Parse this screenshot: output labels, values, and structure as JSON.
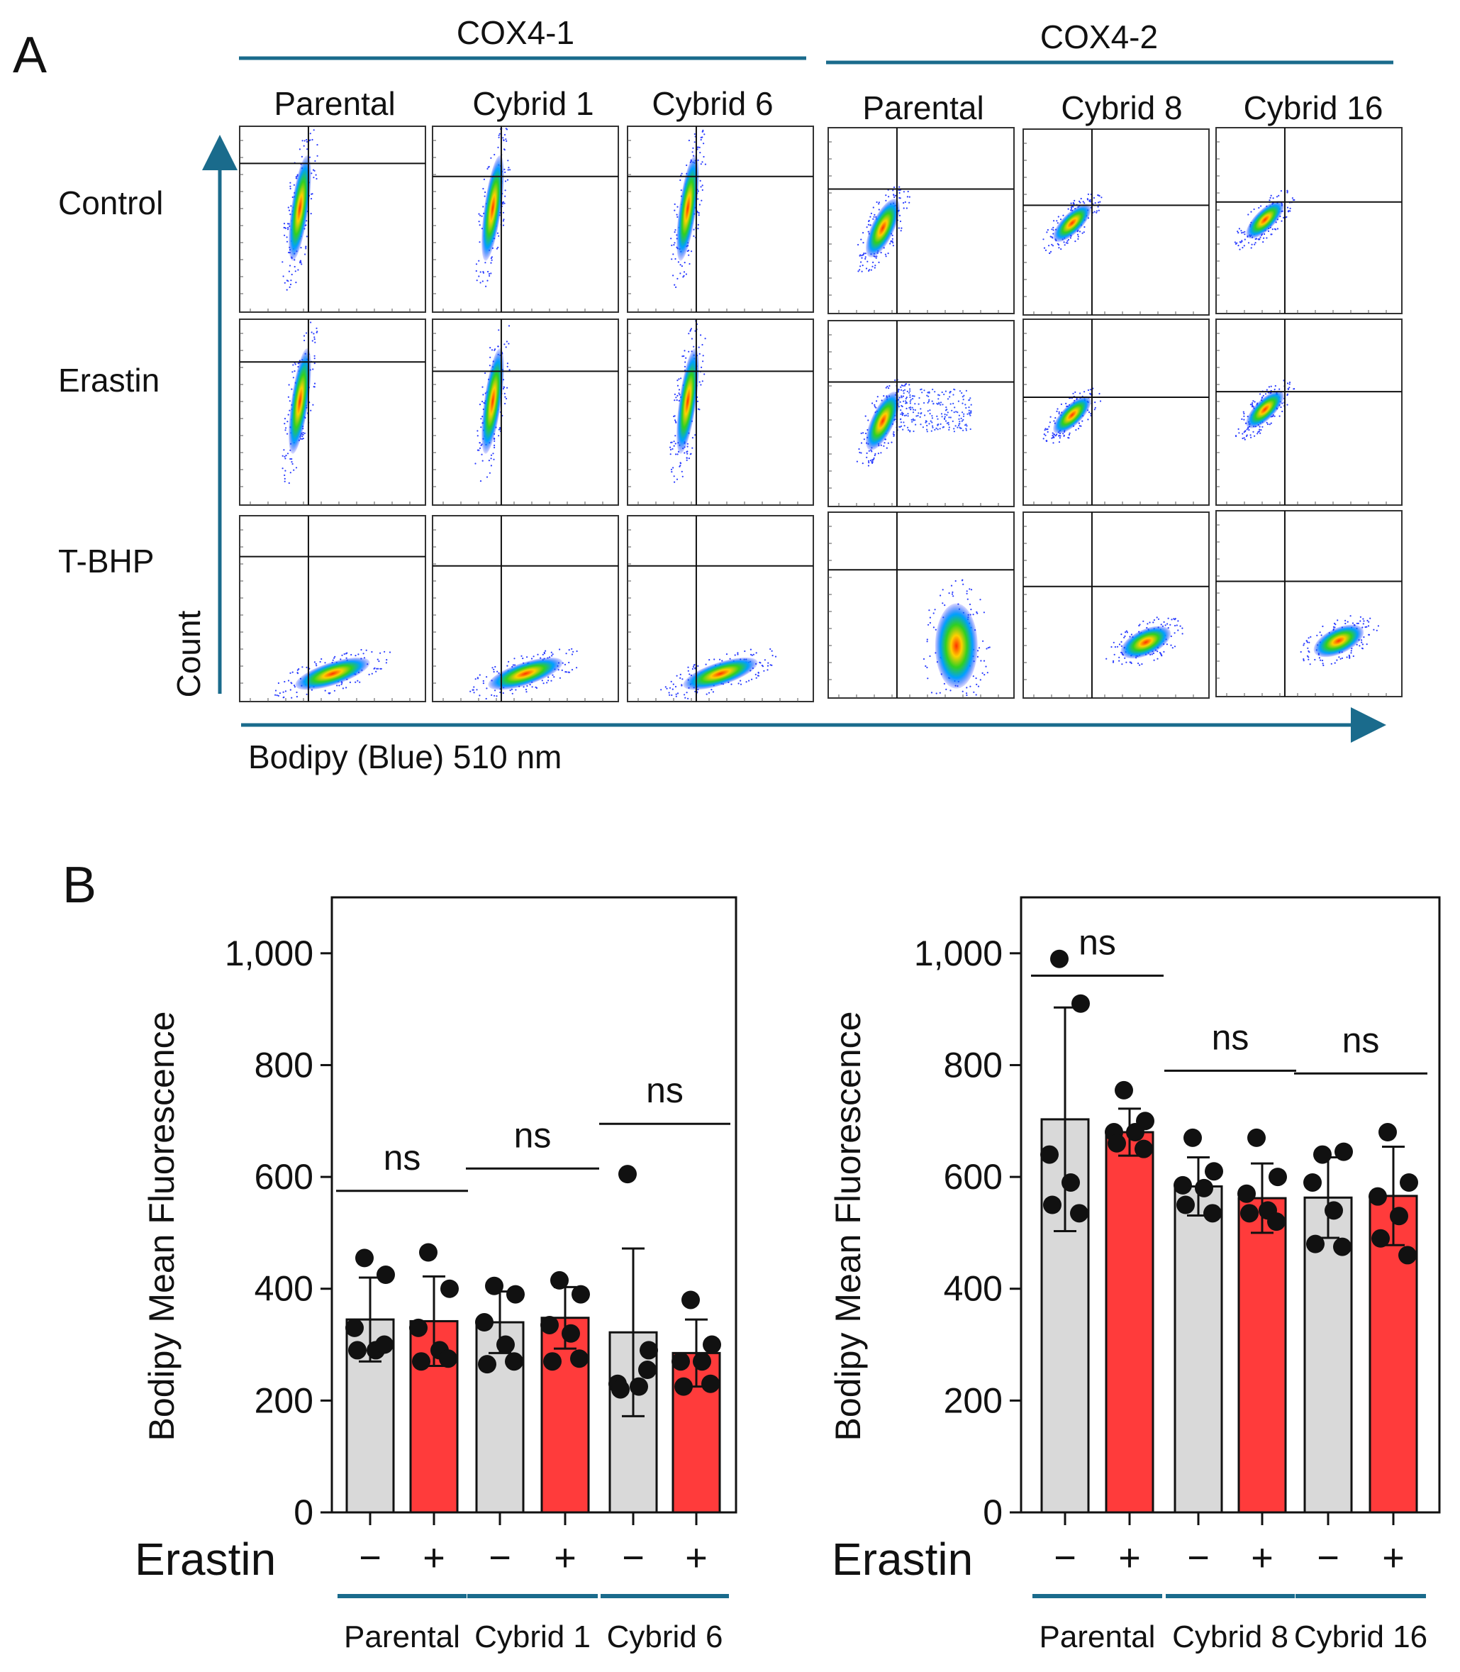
{
  "panel_a": {
    "label": "A",
    "groups": [
      {
        "name": "COX4-1",
        "columns": [
          "Parental",
          "Cybrid 1",
          "Cybrid 6"
        ]
      },
      {
        "name": "COX4-2",
        "columns": [
          "Parental",
          "Cybrid 8",
          "Cybrid 16"
        ]
      }
    ],
    "rows": [
      "Control",
      "Erastin",
      "T-BHP"
    ],
    "y_axis_label": "Count",
    "x_axis_label": "Bodipy (Blue) 510 nm",
    "quadrant_gate_levels": [
      [
        0.8,
        0.73,
        0.73,
        0.67,
        0.59,
        0.6
      ],
      [
        0.77,
        0.72,
        0.72,
        0.67,
        0.58,
        0.61
      ],
      [
        0.78,
        0.73,
        0.73,
        0.69,
        0.6,
        0.62
      ]
    ],
    "population": {
      "control": "vertical cluster near gate x, upper region",
      "tbhp": "shifted right toward higher Bodipy fluorescence"
    }
  },
  "panel_b": {
    "label": "B",
    "treatment_label": "Erastin",
    "minus_label": "−",
    "plus_label": "+",
    "colors": {
      "untreated": "#d9d9d9",
      "erastin": "#ff3b3b",
      "group_line": "#1a6b8c",
      "axis_arrow": "#1a6b8c"
    }
  },
  "chart_data": [
    {
      "type": "bar",
      "title": "",
      "ylabel": "Bodipy Mean Fluorescence",
      "ylim": [
        0,
        1100
      ],
      "yticks": [
        0,
        200,
        400,
        600,
        800,
        1000
      ],
      "ytick_labels": [
        "0",
        "200",
        "400",
        "600",
        "800",
        "1,000"
      ],
      "groups": [
        "Parental",
        "Cybrid 1",
        "Cybrid 6"
      ],
      "significance": [
        "ns",
        "ns",
        "ns"
      ],
      "series": [
        {
          "name": "Erastin −",
          "values": [
            345,
            340,
            322
          ],
          "sd": [
            75,
            55,
            150
          ]
        },
        {
          "name": "Erastin +",
          "values": [
            342,
            348,
            285
          ],
          "sd": [
            80,
            55,
            60
          ]
        }
      ],
      "points": [
        [
          [
            455,
            425,
            330,
            290,
            290,
            300
          ],
          [
            465,
            400,
            330,
            290,
            270,
            275
          ]
        ],
        [
          [
            405,
            390,
            340,
            300,
            265,
            270
          ],
          [
            415,
            390,
            335,
            320,
            270,
            275
          ]
        ],
        [
          [
            605,
            290,
            230,
            225,
            220,
            255
          ],
          [
            380,
            300,
            270,
            270,
            225,
            230
          ]
        ]
      ],
      "sig_bar_levels": [
        575,
        615,
        695
      ]
    },
    {
      "type": "bar",
      "title": "",
      "ylabel": "Bodipy Mean Fluorescence",
      "ylim": [
        0,
        1100
      ],
      "yticks": [
        0,
        200,
        400,
        600,
        800,
        1000
      ],
      "ytick_labels": [
        "0",
        "200",
        "400",
        "600",
        "800",
        "1,000"
      ],
      "groups": [
        "Parental",
        "Cybrid 8",
        "Cybrid 16"
      ],
      "significance": [
        "ns",
        "ns",
        "ns"
      ],
      "series": [
        {
          "name": "Erastin −",
          "values": [
            703,
            583,
            563
          ],
          "sd": [
            200,
            52,
            72
          ]
        },
        {
          "name": "Erastin +",
          "values": [
            680,
            562,
            566
          ],
          "sd": [
            42,
            62,
            88
          ]
        }
      ],
      "points": [
        [
          [
            990,
            910,
            640,
            590,
            550,
            535
          ],
          [
            755,
            700,
            680,
            680,
            660,
            650
          ]
        ],
        [
          [
            670,
            610,
            585,
            580,
            550,
            535
          ],
          [
            670,
            600,
            570,
            540,
            535,
            520
          ]
        ],
        [
          [
            640,
            645,
            590,
            540,
            480,
            475
          ],
          [
            680,
            590,
            565,
            530,
            490,
            460
          ]
        ]
      ],
      "sig_bar_levels": [
        960,
        790,
        785
      ]
    }
  ]
}
